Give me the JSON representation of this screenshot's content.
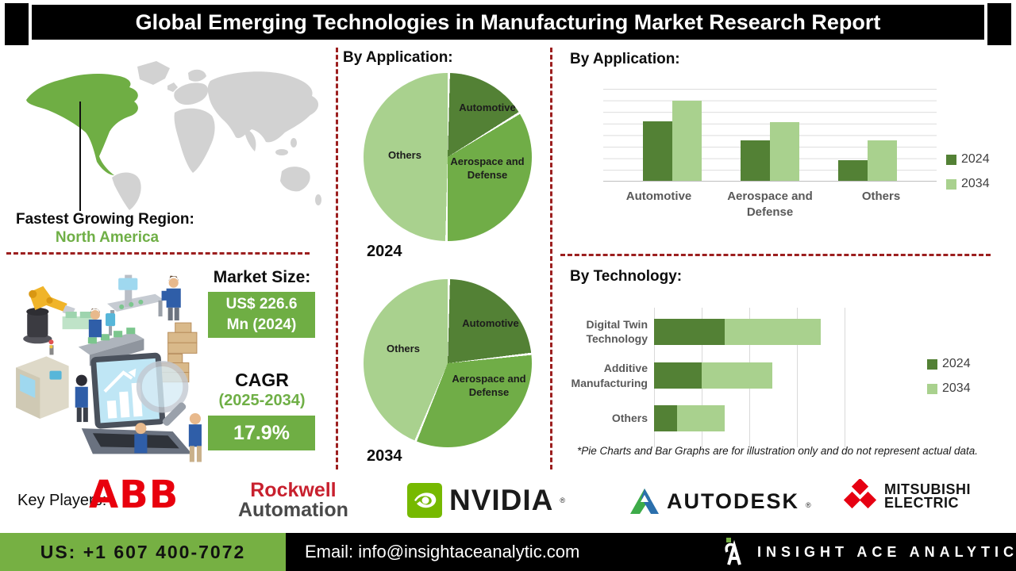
{
  "header": {
    "title": "Global Emerging Technologies in Manufacturing Market Research Report"
  },
  "map": {
    "region_label": "Fastest Growing Region:",
    "region_value": "North America"
  },
  "market": {
    "size_label": "Market Size:",
    "size_value": "US$ 226.6 Mn (2024)",
    "cagr_label": "CAGR",
    "cagr_period": "(2025-2034)",
    "cagr_value": "17.9%"
  },
  "sections": {
    "pies_heading": "By Application:",
    "bars_heading": "By Application:",
    "tech_heading": "By Technology:"
  },
  "footnote": "*Pie Charts and Bar Graphs are for illustration only and do not represent actual data.",
  "chart_data": [
    {
      "type": "pie",
      "section": "By Application:",
      "year_label": "2024",
      "labels": [
        "Automotive",
        "Aerospace and Defense",
        "Others"
      ],
      "values": [
        16,
        34,
        50
      ],
      "colors": [
        "#538135",
        "#70ad47",
        "#a9d18e"
      ],
      "note": "illustrative percentages estimated from slice angles"
    },
    {
      "type": "pie",
      "section": "By Application:",
      "year_label": "2034",
      "labels": [
        "Automotive",
        "Aerospace and Defense",
        "Others"
      ],
      "values": [
        23,
        33,
        44
      ],
      "colors": [
        "#538135",
        "#70ad47",
        "#a9d18e"
      ],
      "note": "illustrative percentages estimated from slice angles"
    },
    {
      "type": "bar",
      "section": "By Application:",
      "categories": [
        "Automotive",
        "Aerospace and Defense",
        "Others"
      ],
      "series": [
        {
          "name": "2024",
          "values": [
            65,
            44,
            22
          ]
        },
        {
          "name": "2034",
          "values": [
            87,
            64,
            44
          ]
        }
      ],
      "colors": [
        "#538135",
        "#a9d18e"
      ],
      "ylim": [
        0,
        100
      ],
      "grid": "horizontal",
      "legend_position": "right",
      "note": "no axis labels shown; values estimated from gridlines"
    },
    {
      "type": "bar",
      "orientation": "horizontal-stacked",
      "section": "By Technology:",
      "categories": [
        "Digital Twin Technology",
        "Additive Manufacturing",
        "Others"
      ],
      "series": [
        {
          "name": "2024",
          "values": [
            37,
            25,
            12
          ]
        },
        {
          "name": "2034",
          "values": [
            50,
            37,
            25
          ]
        }
      ],
      "colors": [
        "#538135",
        "#a9d18e"
      ],
      "xlim": [
        0,
        100
      ],
      "grid": "vertical",
      "legend_position": "right",
      "note": "no axis labels shown; values estimated from gridlines"
    }
  ],
  "key_players": {
    "label": "Key Players:",
    "reg_mark": "®",
    "logos": [
      {
        "name": "ABB",
        "text": "ABB"
      },
      {
        "name": "Rockwell Automation",
        "line1": "Rockwell",
        "line2": "Automation"
      },
      {
        "name": "NVIDIA",
        "text": "NVIDIA"
      },
      {
        "name": "Autodesk",
        "text": "AUTODESK"
      },
      {
        "name": "Mitsubishi Electric",
        "line1": "MITSUBISHI",
        "line2": "ELECTRIC"
      }
    ]
  },
  "footer": {
    "phone": "US: +1 607 400-7072",
    "email": "Email: info@insightaceanalytic.com",
    "brand": "INSIGHT ACE ANALYTIC"
  },
  "colors": {
    "dark_green": "#538135",
    "mid_green": "#70ad47",
    "light_green": "#a9d18e",
    "accent_green": "#76b043",
    "box_green": "#6fae44",
    "dashed_red": "#9c1f1f",
    "map_gray": "#d2d2d2",
    "header_black": "#000000"
  }
}
